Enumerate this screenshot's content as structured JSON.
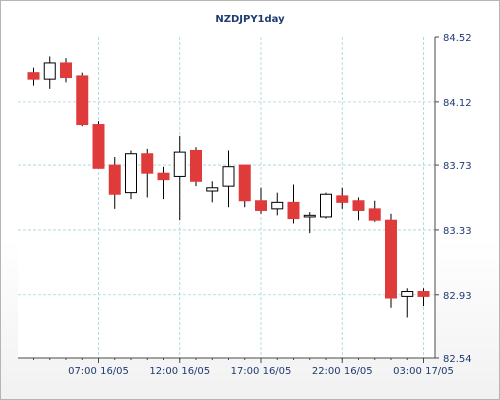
{
  "chart_data": {
    "type": "candlestick",
    "title": "NZDJPY1day",
    "xlabel": "",
    "ylabel": "",
    "ylim": [
      82.54,
      84.52
    ],
    "yticks": [
      "84.52",
      "84.12",
      "83.73",
      "83.33",
      "82.93",
      "82.54"
    ],
    "xtick_labels": [
      "07:00 16/05",
      "12:00 16/05",
      "17:00 16/05",
      "22:00 16/05",
      "03:00 17/05"
    ],
    "xtick_index": [
      4,
      9,
      14,
      19,
      24
    ],
    "grid": true,
    "bull_color": "#ffffff",
    "bear_color": "#e03b3b",
    "candles": [
      {
        "o": 84.3,
        "h": 84.33,
        "l": 84.22,
        "c": 84.26
      },
      {
        "o": 84.26,
        "h": 84.4,
        "l": 84.2,
        "c": 84.36
      },
      {
        "o": 84.36,
        "h": 84.39,
        "l": 84.24,
        "c": 84.27
      },
      {
        "o": 84.28,
        "h": 84.3,
        "l": 83.97,
        "c": 83.98
      },
      {
        "o": 83.98,
        "h": 84.0,
        "l": 83.71,
        "c": 83.71
      },
      {
        "o": 83.73,
        "h": 83.78,
        "l": 83.46,
        "c": 83.55
      },
      {
        "o": 83.56,
        "h": 83.82,
        "l": 83.52,
        "c": 83.8
      },
      {
        "o": 83.8,
        "h": 83.83,
        "l": 83.53,
        "c": 83.68
      },
      {
        "o": 83.68,
        "h": 83.72,
        "l": 83.52,
        "c": 83.64
      },
      {
        "o": 83.66,
        "h": 83.91,
        "l": 83.39,
        "c": 83.81
      },
      {
        "o": 83.82,
        "h": 83.84,
        "l": 83.6,
        "c": 83.63
      },
      {
        "o": 83.57,
        "h": 83.63,
        "l": 83.5,
        "c": 83.59
      },
      {
        "o": 83.6,
        "h": 83.82,
        "l": 83.47,
        "c": 83.72
      },
      {
        "o": 83.73,
        "h": 83.73,
        "l": 83.47,
        "c": 83.51
      },
      {
        "o": 83.51,
        "h": 83.59,
        "l": 83.43,
        "c": 83.45
      },
      {
        "o": 83.46,
        "h": 83.56,
        "l": 83.42,
        "c": 83.5
      },
      {
        "o": 83.5,
        "h": 83.61,
        "l": 83.37,
        "c": 83.4
      },
      {
        "o": 83.41,
        "h": 83.44,
        "l": 83.31,
        "c": 83.42
      },
      {
        "o": 83.41,
        "h": 83.56,
        "l": 83.4,
        "c": 83.55
      },
      {
        "o": 83.54,
        "h": 83.59,
        "l": 83.46,
        "c": 83.5
      },
      {
        "o": 83.51,
        "h": 83.53,
        "l": 83.39,
        "c": 83.45
      },
      {
        "o": 83.46,
        "h": 83.51,
        "l": 83.38,
        "c": 83.39
      },
      {
        "o": 83.39,
        "h": 83.43,
        "l": 82.85,
        "c": 82.91
      },
      {
        "o": 82.92,
        "h": 82.97,
        "l": 82.79,
        "c": 82.95
      },
      {
        "o": 82.95,
        "h": 82.97,
        "l": 82.86,
        "c": 82.92
      }
    ]
  }
}
